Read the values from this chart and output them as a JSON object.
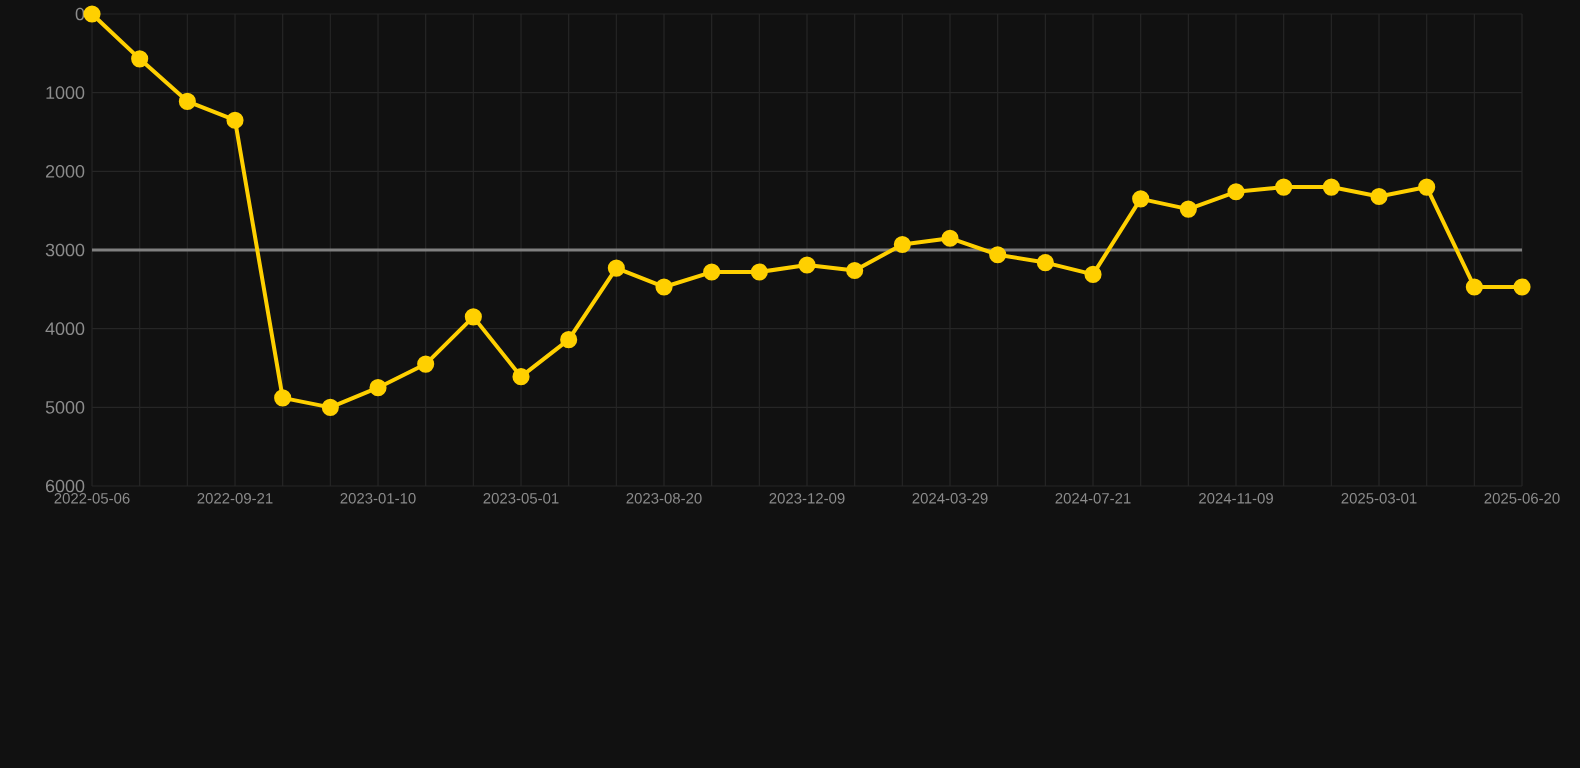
{
  "chart_data": {
    "type": "line",
    "categories": [
      "2022-05-06",
      null,
      null,
      "2022-09-21",
      null,
      null,
      "2023-01-10",
      null,
      null,
      "2023-05-01",
      null,
      null,
      "2023-08-20",
      null,
      null,
      "2023-12-09",
      null,
      null,
      "2024-03-29",
      null,
      null,
      "2024-07-21",
      null,
      null,
      "2024-11-09",
      null,
      null,
      "2025-03-01",
      null,
      null,
      "2025-06-20"
    ],
    "series": [
      {
        "color": "#ffd000",
        "values": [
          0,
          570,
          1110,
          1350,
          4880,
          5000,
          4750,
          4450,
          3850,
          4610,
          4140,
          3230,
          3470,
          3280,
          3280,
          3190,
          3260,
          2930,
          2850,
          3060,
          3160,
          3310,
          2350,
          2480,
          2260,
          2200,
          2200,
          2320,
          2200,
          3470,
          3470
        ]
      }
    ],
    "ylim": [
      6000,
      0
    ],
    "yticks": [
      0,
      1000,
      2000,
      3000,
      4000,
      5000,
      6000
    ],
    "ref_lines": [
      {
        "axis": "y",
        "value": 3000,
        "color": "#808080"
      }
    ],
    "grid": true,
    "marker": "circle",
    "line_style": "solid"
  }
}
